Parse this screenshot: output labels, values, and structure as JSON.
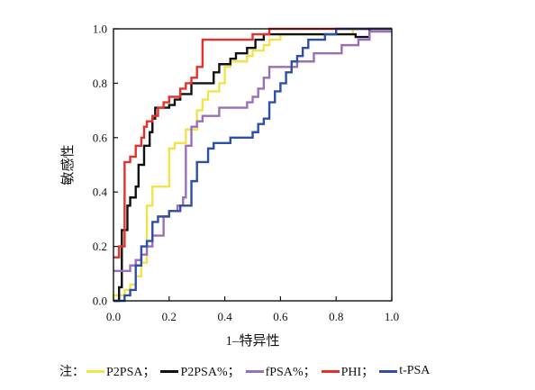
{
  "chart_data": {
    "type": "line",
    "title": "",
    "xlabel": "1–特异性",
    "ylabel": "敏感性",
    "xlim": [
      0,
      1
    ],
    "ylim": [
      0,
      1
    ],
    "x_ticks": [
      "0.0",
      "0.2",
      "0.4",
      "0.6",
      "0.8",
      "1.0"
    ],
    "y_ticks": [
      "0.0",
      "0.2",
      "0.4",
      "0.6",
      "0.8",
      "1.0"
    ],
    "grid": false,
    "legend_placement": "bottom",
    "legend_prefix": "注：",
    "series": [
      {
        "name": "P2PSA",
        "legend_label": "P2PSA；",
        "color": "#f2e34a",
        "points": [
          [
            0,
            0
          ],
          [
            0,
            0.02
          ],
          [
            0.04,
            0.02
          ],
          [
            0.04,
            0.04
          ],
          [
            0.06,
            0.04
          ],
          [
            0.06,
            0.06
          ],
          [
            0.08,
            0.06
          ],
          [
            0.08,
            0.09
          ],
          [
            0.1,
            0.09
          ],
          [
            0.1,
            0.14
          ],
          [
            0.12,
            0.14
          ],
          [
            0.12,
            0.35
          ],
          [
            0.14,
            0.35
          ],
          [
            0.14,
            0.42
          ],
          [
            0.2,
            0.42
          ],
          [
            0.2,
            0.56
          ],
          [
            0.22,
            0.56
          ],
          [
            0.22,
            0.58
          ],
          [
            0.26,
            0.58
          ],
          [
            0.26,
            0.63
          ],
          [
            0.3,
            0.63
          ],
          [
            0.3,
            0.7
          ],
          [
            0.32,
            0.7
          ],
          [
            0.32,
            0.74
          ],
          [
            0.34,
            0.74
          ],
          [
            0.34,
            0.77
          ],
          [
            0.38,
            0.77
          ],
          [
            0.38,
            0.8
          ],
          [
            0.4,
            0.8
          ],
          [
            0.4,
            0.86
          ],
          [
            0.42,
            0.86
          ],
          [
            0.42,
            0.88
          ],
          [
            0.48,
            0.88
          ],
          [
            0.48,
            0.9
          ],
          [
            0.5,
            0.9
          ],
          [
            0.5,
            0.92
          ],
          [
            0.54,
            0.92
          ],
          [
            0.54,
            0.94
          ],
          [
            0.56,
            0.94
          ],
          [
            0.56,
            0.96
          ],
          [
            0.6,
            0.96
          ],
          [
            0.6,
            0.98
          ],
          [
            0.86,
            0.98
          ],
          [
            0.86,
            1.0
          ],
          [
            1.0,
            1.0
          ]
        ]
      },
      {
        "name": "P2PSA%",
        "legend_label": "P2PSA%；",
        "color": "#111111",
        "points": [
          [
            0,
            0
          ],
          [
            0.02,
            0
          ],
          [
            0.02,
            0.05
          ],
          [
            0.03,
            0.05
          ],
          [
            0.03,
            0.26
          ],
          [
            0.05,
            0.26
          ],
          [
            0.05,
            0.35
          ],
          [
            0.06,
            0.35
          ],
          [
            0.06,
            0.38
          ],
          [
            0.08,
            0.38
          ],
          [
            0.08,
            0.42
          ],
          [
            0.09,
            0.42
          ],
          [
            0.09,
            0.5
          ],
          [
            0.11,
            0.5
          ],
          [
            0.11,
            0.57
          ],
          [
            0.13,
            0.57
          ],
          [
            0.13,
            0.62
          ],
          [
            0.14,
            0.62
          ],
          [
            0.14,
            0.67
          ],
          [
            0.15,
            0.67
          ],
          [
            0.15,
            0.71
          ],
          [
            0.2,
            0.71
          ],
          [
            0.2,
            0.72
          ],
          [
            0.22,
            0.72
          ],
          [
            0.22,
            0.74
          ],
          [
            0.24,
            0.74
          ],
          [
            0.24,
            0.76
          ],
          [
            0.28,
            0.76
          ],
          [
            0.28,
            0.8
          ],
          [
            0.36,
            0.8
          ],
          [
            0.36,
            0.84
          ],
          [
            0.38,
            0.84
          ],
          [
            0.38,
            0.87
          ],
          [
            0.42,
            0.87
          ],
          [
            0.42,
            0.89
          ],
          [
            0.44,
            0.89
          ],
          [
            0.44,
            0.91
          ],
          [
            0.48,
            0.91
          ],
          [
            0.48,
            0.93
          ],
          [
            0.51,
            0.93
          ],
          [
            0.51,
            0.96
          ],
          [
            0.54,
            0.96
          ],
          [
            0.54,
            0.98
          ],
          [
            0.87,
            0.98
          ],
          [
            0.87,
            0.97
          ],
          [
            0.92,
            0.97
          ],
          [
            0.92,
            1.0
          ],
          [
            1.0,
            1.0
          ]
        ]
      },
      {
        "name": "fPSA%",
        "legend_label": "fPSA%；",
        "color": "#9b6fb8",
        "points": [
          [
            0,
            0.11
          ],
          [
            0.06,
            0.11
          ],
          [
            0.06,
            0.13
          ],
          [
            0.08,
            0.13
          ],
          [
            0.08,
            0.15
          ],
          [
            0.1,
            0.15
          ],
          [
            0.1,
            0.17
          ],
          [
            0.12,
            0.17
          ],
          [
            0.12,
            0.2
          ],
          [
            0.14,
            0.2
          ],
          [
            0.14,
            0.24
          ],
          [
            0.18,
            0.24
          ],
          [
            0.18,
            0.31
          ],
          [
            0.2,
            0.31
          ],
          [
            0.2,
            0.33
          ],
          [
            0.23,
            0.33
          ],
          [
            0.23,
            0.35
          ],
          [
            0.25,
            0.35
          ],
          [
            0.25,
            0.38
          ],
          [
            0.26,
            0.38
          ],
          [
            0.26,
            0.57
          ],
          [
            0.28,
            0.57
          ],
          [
            0.28,
            0.64
          ],
          [
            0.3,
            0.64
          ],
          [
            0.3,
            0.66
          ],
          [
            0.32,
            0.66
          ],
          [
            0.32,
            0.68
          ],
          [
            0.38,
            0.68
          ],
          [
            0.38,
            0.71
          ],
          [
            0.48,
            0.71
          ],
          [
            0.48,
            0.73
          ],
          [
            0.5,
            0.73
          ],
          [
            0.5,
            0.75
          ],
          [
            0.52,
            0.75
          ],
          [
            0.52,
            0.78
          ],
          [
            0.54,
            0.78
          ],
          [
            0.54,
            0.82
          ],
          [
            0.56,
            0.82
          ],
          [
            0.56,
            0.86
          ],
          [
            0.66,
            0.86
          ],
          [
            0.66,
            0.88
          ],
          [
            0.72,
            0.88
          ],
          [
            0.72,
            0.91
          ],
          [
            0.82,
            0.91
          ],
          [
            0.82,
            0.94
          ],
          [
            0.88,
            0.94
          ],
          [
            0.88,
            0.96
          ],
          [
            0.92,
            0.96
          ],
          [
            0.92,
            0.99
          ],
          [
            1.0,
            0.99
          ]
        ]
      },
      {
        "name": "PHI",
        "legend_label": "PHI；",
        "color": "#e8302a",
        "points": [
          [
            0,
            0.16
          ],
          [
            0.02,
            0.16
          ],
          [
            0.02,
            0.2
          ],
          [
            0.04,
            0.2
          ],
          [
            0.04,
            0.51
          ],
          [
            0.06,
            0.51
          ],
          [
            0.06,
            0.53
          ],
          [
            0.08,
            0.53
          ],
          [
            0.08,
            0.57
          ],
          [
            0.1,
            0.57
          ],
          [
            0.1,
            0.6
          ],
          [
            0.11,
            0.6
          ],
          [
            0.11,
            0.64
          ],
          [
            0.12,
            0.64
          ],
          [
            0.12,
            0.66
          ],
          [
            0.14,
            0.66
          ],
          [
            0.14,
            0.68
          ],
          [
            0.16,
            0.68
          ],
          [
            0.16,
            0.71
          ],
          [
            0.18,
            0.71
          ],
          [
            0.18,
            0.73
          ],
          [
            0.2,
            0.73
          ],
          [
            0.2,
            0.75
          ],
          [
            0.24,
            0.75
          ],
          [
            0.24,
            0.78
          ],
          [
            0.26,
            0.78
          ],
          [
            0.26,
            0.8
          ],
          [
            0.28,
            0.8
          ],
          [
            0.28,
            0.82
          ],
          [
            0.3,
            0.82
          ],
          [
            0.3,
            0.86
          ],
          [
            0.32,
            0.86
          ],
          [
            0.32,
            0.96
          ],
          [
            0.5,
            0.96
          ],
          [
            0.5,
            0.98
          ],
          [
            0.56,
            0.98
          ],
          [
            0.56,
            1.0
          ],
          [
            1.0,
            1.0
          ]
        ]
      },
      {
        "name": "t-PSA",
        "legend_label": "t-PSA",
        "color": "#2e4fa6",
        "points": [
          [
            0,
            0
          ],
          [
            0.04,
            0
          ],
          [
            0.04,
            0.02
          ],
          [
            0.06,
            0.02
          ],
          [
            0.06,
            0.04
          ],
          [
            0.08,
            0.04
          ],
          [
            0.08,
            0.13
          ],
          [
            0.1,
            0.13
          ],
          [
            0.1,
            0.2
          ],
          [
            0.12,
            0.2
          ],
          [
            0.12,
            0.22
          ],
          [
            0.14,
            0.22
          ],
          [
            0.14,
            0.29
          ],
          [
            0.16,
            0.29
          ],
          [
            0.16,
            0.31
          ],
          [
            0.2,
            0.31
          ],
          [
            0.2,
            0.33
          ],
          [
            0.24,
            0.33
          ],
          [
            0.24,
            0.35
          ],
          [
            0.28,
            0.35
          ],
          [
            0.28,
            0.44
          ],
          [
            0.3,
            0.44
          ],
          [
            0.3,
            0.51
          ],
          [
            0.34,
            0.51
          ],
          [
            0.34,
            0.56
          ],
          [
            0.36,
            0.56
          ],
          [
            0.36,
            0.58
          ],
          [
            0.42,
            0.58
          ],
          [
            0.42,
            0.6
          ],
          [
            0.5,
            0.6
          ],
          [
            0.5,
            0.62
          ],
          [
            0.52,
            0.62
          ],
          [
            0.52,
            0.65
          ],
          [
            0.54,
            0.65
          ],
          [
            0.54,
            0.67
          ],
          [
            0.56,
            0.67
          ],
          [
            0.56,
            0.73
          ],
          [
            0.58,
            0.73
          ],
          [
            0.58,
            0.77
          ],
          [
            0.6,
            0.77
          ],
          [
            0.6,
            0.8
          ],
          [
            0.62,
            0.8
          ],
          [
            0.62,
            0.84
          ],
          [
            0.64,
            0.84
          ],
          [
            0.64,
            0.88
          ],
          [
            0.66,
            0.88
          ],
          [
            0.66,
            0.9
          ],
          [
            0.68,
            0.9
          ],
          [
            0.68,
            0.93
          ],
          [
            0.7,
            0.93
          ],
          [
            0.7,
            0.96
          ],
          [
            0.76,
            0.96
          ],
          [
            0.76,
            0.98
          ],
          [
            0.8,
            0.98
          ],
          [
            0.8,
            1.0
          ],
          [
            1.0,
            1.0
          ]
        ]
      }
    ]
  }
}
